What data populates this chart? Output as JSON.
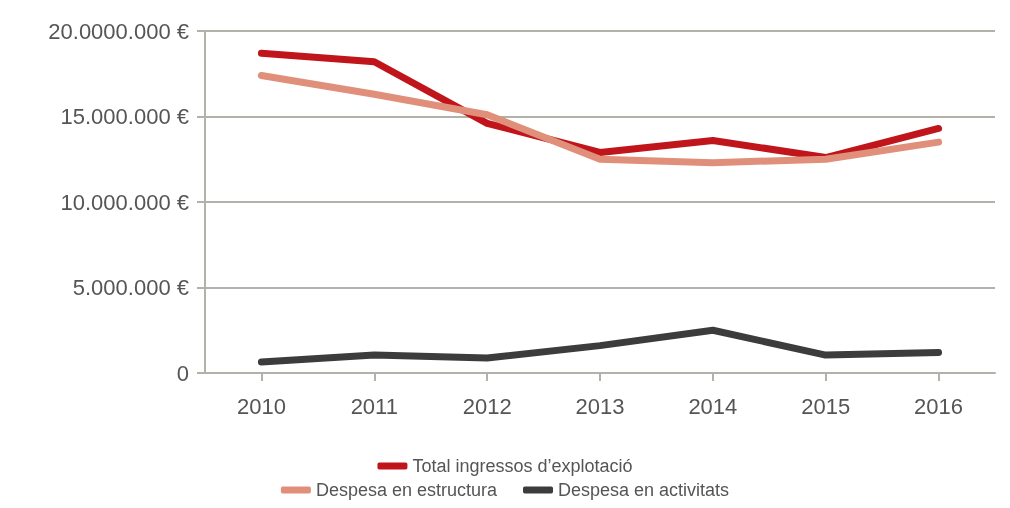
{
  "chart_data": {
    "type": "line",
    "categories": [
      "2010",
      "2011",
      "2012",
      "2013",
      "2014",
      "2015",
      "2016"
    ],
    "series": [
      {
        "name": "Total ingressos d’explotació",
        "color": "#c0161b",
        "values": [
          18700000,
          18200000,
          14600000,
          12900000,
          13600000,
          12600000,
          14300000
        ]
      },
      {
        "name": "Despesa en estructura",
        "color": "#e0907a",
        "values": [
          17400000,
          16300000,
          15100000,
          12500000,
          12300000,
          12500000,
          13500000
        ]
      },
      {
        "name": "Despesa en activitats",
        "color": "#3c3c3c",
        "values": [
          640000,
          1050000,
          880000,
          1600000,
          2500000,
          1050000,
          1200000
        ]
      }
    ],
    "ylim": [
      0,
      20000000
    ],
    "yticks": [
      {
        "value": 0,
        "label": "0"
      },
      {
        "value": 5000000,
        "label": "5.000.000 €"
      },
      {
        "value": 10000000,
        "label": "10.000.000 €"
      },
      {
        "value": 15000000,
        "label": "15.000.000 €"
      },
      {
        "value": 20000000,
        "label": "20.0000.000 €"
      }
    ],
    "grid": "y",
    "legend": "bottom",
    "marker": "none",
    "line_style": "solid"
  }
}
